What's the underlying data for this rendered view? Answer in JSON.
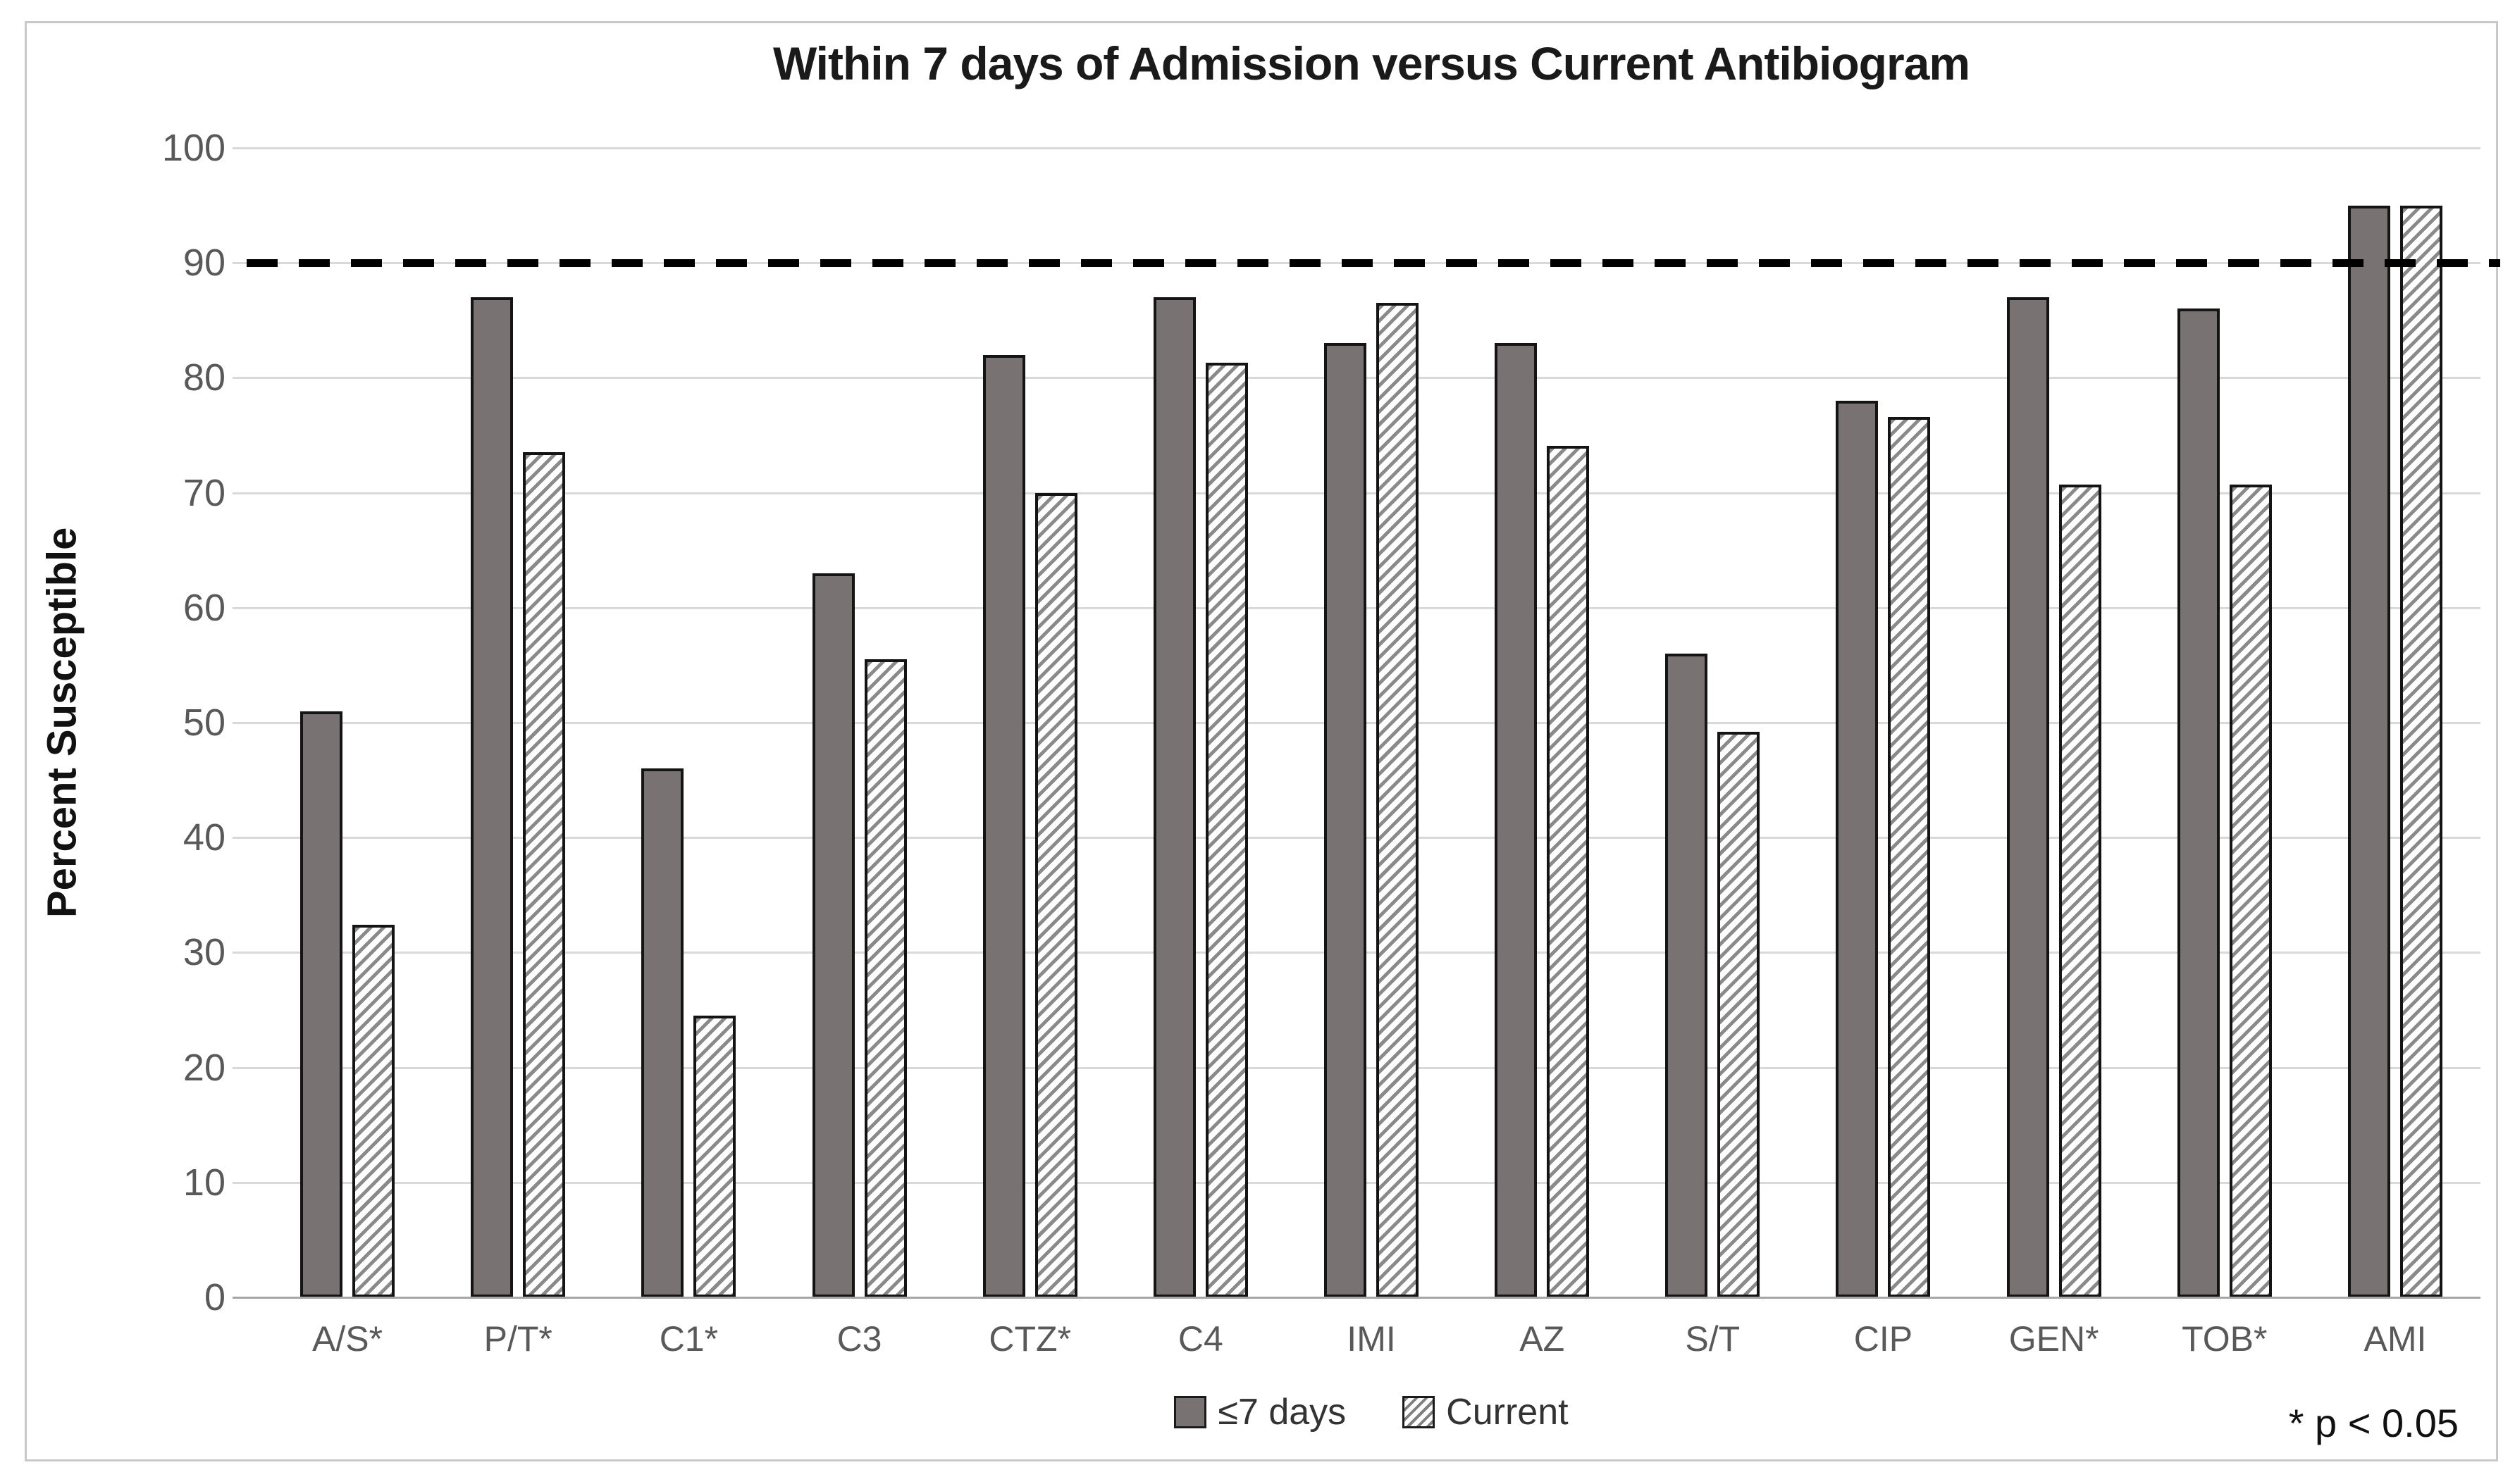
{
  "title": "Within 7 days of Admission versus Current Antibiogram",
  "y_axis": {
    "label": "Percent Susceptible",
    "min": 0,
    "max": 100,
    "step": 10,
    "tick_labels": [
      "0",
      "10",
      "20",
      "30",
      "40",
      "50",
      "60",
      "70",
      "80",
      "90",
      "100"
    ]
  },
  "reference_line": {
    "value": 90,
    "style": "dashed",
    "color": "#000000"
  },
  "legend": {
    "items": [
      {
        "label": "≤7 days",
        "style": "solid"
      },
      {
        "label": "Current",
        "style": "hatched"
      }
    ]
  },
  "annotation": "* p < 0.05",
  "colors": {
    "solid_bar_fill": "#787272",
    "bar_border": "#141414",
    "hatch_stripe": "#8a8a8a",
    "gridline": "#d9d9d9",
    "axis_baseline": "#a6a6a6",
    "tick_label_text": "#595959",
    "title_text": "#1a1a1a",
    "frame_border": "#c9c9c9",
    "dashed_line": "#000000"
  },
  "chart_data": {
    "type": "bar",
    "title": "Within 7 days of Admission versus Current Antibiogram",
    "xlabel": "",
    "ylabel": "Percent Susceptible",
    "ylim": [
      0,
      100
    ],
    "y_step": 10,
    "grid": true,
    "legend_position": "bottom",
    "reference_line": 90,
    "categories": [
      "A/S*",
      "P/T*",
      "C1*",
      "C3",
      "CTZ*",
      "C4",
      "IMI",
      "AZ",
      "S/T",
      "CIP",
      "GEN*",
      "TOB*",
      "AMI"
    ],
    "series": [
      {
        "name": "≤7 days",
        "style": "solid",
        "values": [
          51,
          87,
          46,
          63,
          82,
          87,
          83,
          83,
          56,
          78,
          87,
          86,
          95
        ]
      },
      {
        "name": "Current",
        "style": "hatched",
        "values": [
          32.4,
          73.5,
          24.5,
          55.5,
          70.0,
          81.3,
          86.5,
          74.1,
          49.2,
          76.6,
          70.7,
          70.7,
          95.0
        ]
      }
    ]
  }
}
